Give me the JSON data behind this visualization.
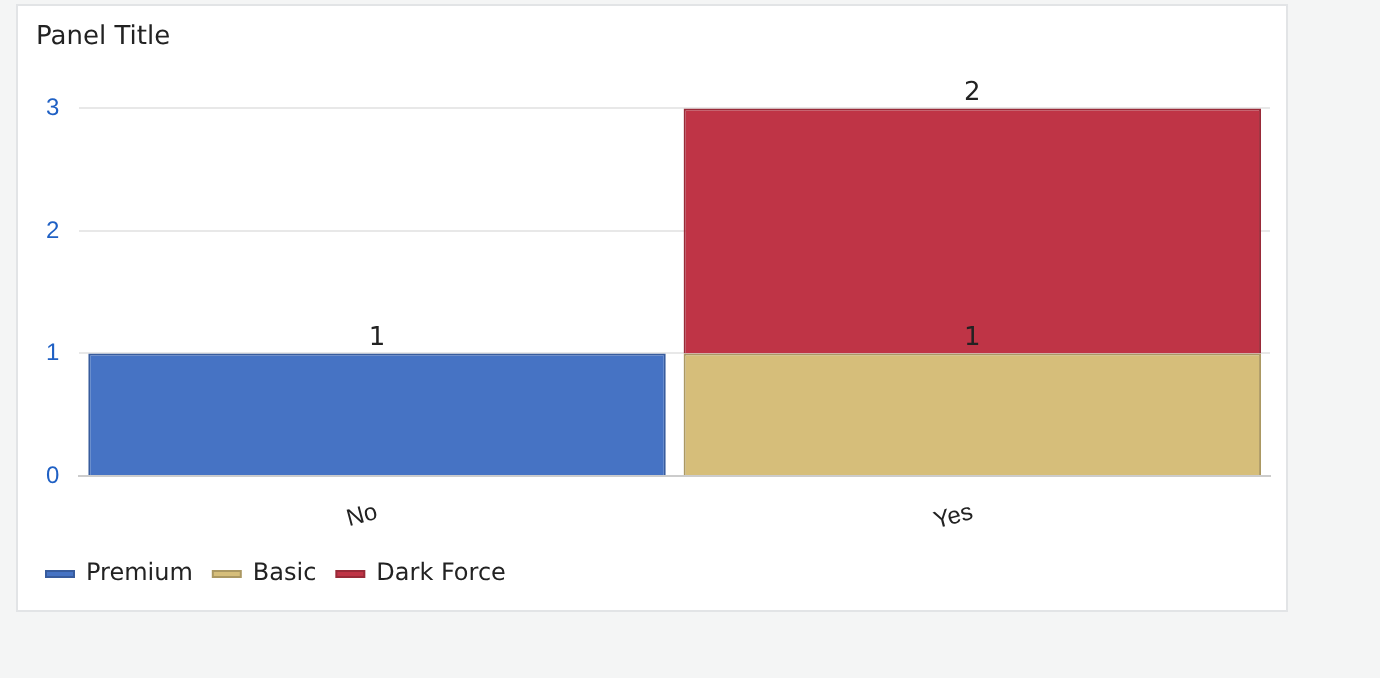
{
  "chart_data": {
    "type": "bar",
    "title": "Panel Title",
    "stacked": true,
    "categories": [
      "No",
      "Yes"
    ],
    "series": [
      {
        "name": "Premium",
        "color": "#4673c4",
        "values": [
          1,
          null
        ]
      },
      {
        "name": "Basic",
        "color": "#d6be7a",
        "values": [
          null,
          1
        ]
      },
      {
        "name": "Dark Force",
        "color": "#bf3446",
        "values": [
          null,
          2
        ]
      }
    ],
    "ylim": [
      0,
      3
    ],
    "yticks": [
      0,
      1,
      2,
      3
    ],
    "grid": "y",
    "legend": "bottom left",
    "data_labels": true
  }
}
